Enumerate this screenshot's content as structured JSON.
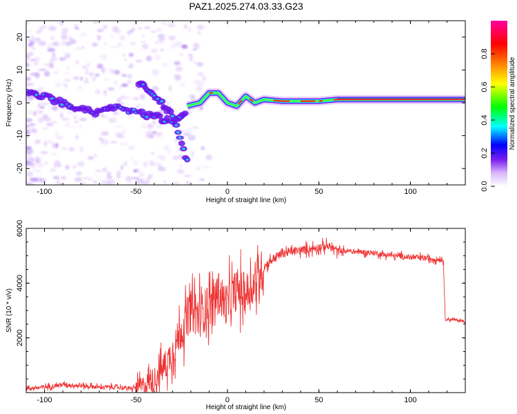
{
  "title": "PAZ1.2025.274.03.33.G23",
  "chart_data": [
    {
      "type": "heatmap",
      "name": "spectrogram",
      "xlabel": "Height of straight line (km)",
      "ylabel": "Frequency (Hz)",
      "xlim": [
        -110,
        130
      ],
      "ylim": [
        -25,
        25
      ],
      "xticks": [
        -100,
        -50,
        0,
        50,
        100
      ],
      "yticks": [
        -20,
        -10,
        0,
        10,
        20
      ],
      "colorbar": {
        "label": "Normalized spectral amplitude",
        "range": [
          0,
          1
        ],
        "ticks": [
          0.0,
          0.2,
          0.4,
          0.6,
          0.8
        ],
        "tick_labels": [
          "0.0",
          "0.2",
          "0.4",
          "0.6",
          "0.8"
        ],
        "colormap": [
          "#ffffff",
          "#d9b8f8",
          "#7a1ff0",
          "#0000ff",
          "#00ffff",
          "#00ff00",
          "#ffff00",
          "#ff8000",
          "#ff0000",
          "#ff00a0"
        ]
      },
      "ridges": [
        {
          "name": "main-tone",
          "x": [
            -110,
            -100,
            -90,
            -80,
            -70,
            -60,
            -50,
            -40,
            -30,
            -22
          ],
          "y": [
            3,
            2,
            0,
            -2,
            -3,
            -1,
            -3,
            -4,
            -6,
            -2
          ]
        },
        {
          "name": "descending-branch",
          "x": [
            -48,
            -42,
            -36,
            -30,
            -26,
            -22
          ],
          "y": [
            6,
            3,
            0,
            -4,
            -10,
            -18
          ]
        },
        {
          "name": "converged-tone",
          "x": [
            -22,
            -15,
            -10,
            -5,
            0,
            5,
            10,
            15,
            20,
            30,
            40,
            50,
            60,
            70,
            80,
            90,
            100,
            110,
            120,
            130
          ],
          "y": [
            -1,
            0,
            3,
            3,
            0,
            -1,
            2,
            0,
            1,
            0.5,
            0.5,
            0.5,
            1,
            1,
            1,
            1,
            1,
            1,
            1,
            1
          ]
        }
      ]
    },
    {
      "type": "line",
      "name": "snr",
      "xlabel": "Height of straight line (km)",
      "ylabel": "SNR (10 * v/v)",
      "xlim": [
        -110,
        130
      ],
      "ylim": [
        0,
        6000
      ],
      "xticks": [
        -100,
        -50,
        0,
        50,
        100
      ],
      "yticks": [
        2000,
        4000,
        6000
      ],
      "color": "#ee3333",
      "series": [
        {
          "name": "SNR",
          "x": [
            -110,
            -100,
            -90,
            -80,
            -70,
            -60,
            -52,
            -45,
            -40,
            -35,
            -30,
            -25,
            -20,
            -15,
            -10,
            -5,
            0,
            5,
            10,
            15,
            20,
            25,
            30,
            40,
            50,
            55,
            60,
            70,
            80,
            90,
            100,
            110,
            118,
            119,
            125,
            130
          ],
          "y": [
            150,
            200,
            300,
            250,
            200,
            200,
            150,
            300,
            500,
            900,
            1500,
            2300,
            3000,
            2800,
            3200,
            3600,
            3200,
            3800,
            3600,
            4000,
            4600,
            4900,
            5100,
            5200,
            5300,
            5350,
            5200,
            5150,
            5100,
            5000,
            4950,
            4900,
            4850,
            2700,
            2650,
            2600
          ]
        }
      ]
    }
  ]
}
